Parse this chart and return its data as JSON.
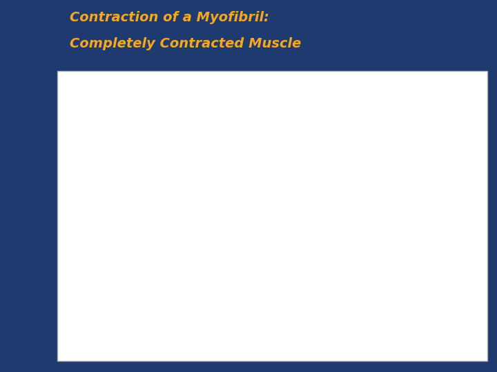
{
  "bg_color": "#1e3a6e",
  "panel_color": "#ffffff",
  "title_line1": "Contraction of a Myofibril:",
  "title_line2": "Completely Contracted Muscle",
  "title_color": "#f5a623",
  "title_fontsize": 14,
  "z_line_color": "#8b2252",
  "thick_filament_color": "#cc7070",
  "thick_filament_border": "#4a1010",
  "actin_color": "#e8a0a0",
  "crossbridge_color": "#999999"
}
